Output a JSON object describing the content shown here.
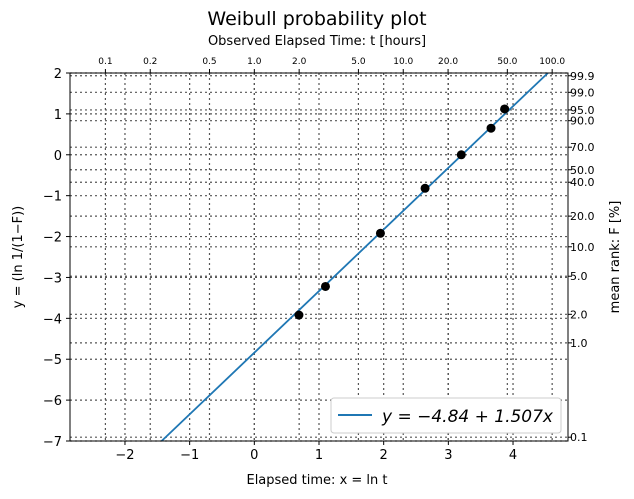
{
  "chart_data": {
    "type": "scatter",
    "title": "Weibull probability plot",
    "subtitle": "Observed Elapsed Time: t [hours]",
    "xlabel": "Elapsed time: x = ln t",
    "ylabel": "y = (ln 1/(1−F))",
    "ylabel_right": "mean rank: F [%]",
    "xlim": [
      -2.85,
      4.85
    ],
    "ylim": [
      -7,
      2
    ],
    "x_ticks": [
      -2,
      -1,
      0,
      1,
      2,
      3,
      4
    ],
    "x_tick_labels": [
      "−2",
      "−1",
      "0",
      "1",
      "2",
      "3",
      "4"
    ],
    "y_ticks": [
      -7,
      -6,
      -5,
      -4,
      -3,
      -2,
      -1,
      0,
      1,
      2
    ],
    "y_tick_labels": [
      "−7",
      "−6",
      "−5",
      "−4",
      "−3",
      "−2",
      "−1",
      "0",
      "1",
      "2"
    ],
    "top_ticks": [
      0.1,
      0.2,
      0.5,
      1.0,
      2.0,
      5.0,
      10.0,
      20.0,
      50.0,
      100.0
    ],
    "top_tick_labels": [
      "0.1",
      "0.2",
      "0.5",
      "1.0",
      "2.0",
      "5.0",
      "10.0",
      "20.0",
      "50.0",
      "100.0"
    ],
    "right_ticks": [
      0.1,
      1.0,
      2.0,
      5.0,
      10.0,
      20.0,
      40.0,
      50.0,
      70.0,
      90.0,
      95.0,
      99.0,
      99.9
    ],
    "right_tick_labels": [
      "0.1",
      "1.0",
      "2.0",
      "5.0",
      "10.0",
      "20.0",
      "40.0",
      "50.0",
      "70.0",
      "90.0",
      "95.0",
      "99.0",
      "99.9"
    ],
    "grid": true,
    "legend_position": "lower-right",
    "series": [
      {
        "type": "scatter",
        "x": [
          0.69,
          1.1,
          1.95,
          2.64,
          3.2,
          3.66,
          3.87
        ],
        "y": [
          -3.92,
          -3.22,
          -1.92,
          -0.82,
          0.0,
          0.65,
          1.12
        ],
        "color": "#000000"
      },
      {
        "type": "line",
        "name": "y = −4.84 + 1.507x",
        "intercept": -4.84,
        "slope": 1.507,
        "color": "#1f77b4"
      }
    ]
  }
}
